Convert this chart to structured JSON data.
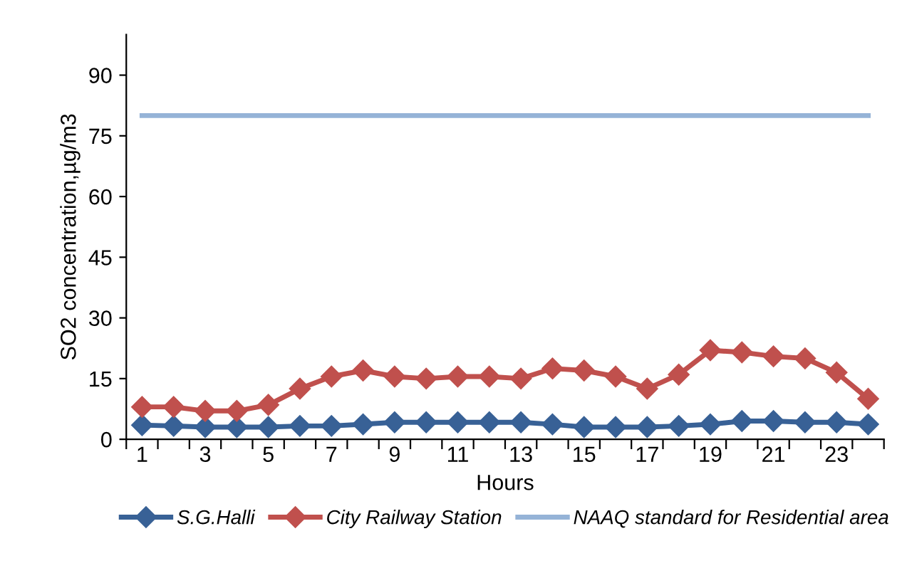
{
  "chart_data": {
    "type": "line",
    "xlabel": "Hours",
    "ylabel": "SO2 concentration,µg/m3",
    "categories": [
      "1",
      null,
      "3",
      null,
      "5",
      null,
      "7",
      null,
      "9",
      null,
      "11",
      null,
      "13",
      null,
      "15",
      null,
      "17",
      null,
      "19",
      null,
      "21",
      null,
      "23",
      null
    ],
    "series": [
      {
        "name": "S.G.Halli",
        "color": "#386196",
        "marker": "diamond",
        "values": [
          3.5,
          3.3,
          3.0,
          3.0,
          3.0,
          3.3,
          3.3,
          3.7,
          4.2,
          4.2,
          4.2,
          4.2,
          4.2,
          3.7,
          3.0,
          3.0,
          3.0,
          3.3,
          3.7,
          4.5,
          4.5,
          4.2,
          4.2,
          3.7
        ]
      },
      {
        "name": "City Railway Station",
        "color": "#c0504d",
        "marker": "diamond",
        "values": [
          8,
          8,
          7,
          7,
          8.5,
          12.5,
          15.5,
          17,
          15.5,
          15,
          15.5,
          15.5,
          15,
          17.5,
          17,
          15.5,
          12.5,
          16,
          22,
          21.5,
          20.5,
          20,
          16.5,
          10
        ]
      },
      {
        "name": "NAAQ standard for Residential area",
        "color": "#95b3d7",
        "marker": "none",
        "values": [
          80,
          80,
          80,
          80,
          80,
          80,
          80,
          80,
          80,
          80,
          80,
          80,
          80,
          80,
          80,
          80,
          80,
          80,
          80,
          80,
          80,
          80,
          80,
          80
        ]
      }
    ],
    "ylim": [
      0,
      100
    ],
    "yticks": [
      0,
      15,
      30,
      45,
      60,
      75,
      90
    ],
    "grid": false,
    "legend": "bottom"
  }
}
